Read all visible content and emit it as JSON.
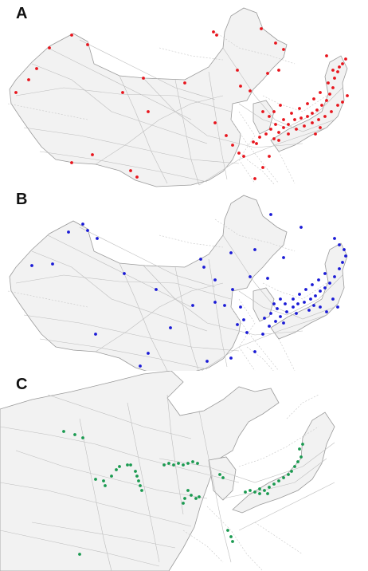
{
  "panels": [
    {
      "label": "A",
      "color": "#e8141c"
    },
    {
      "label": "B",
      "color": "#1a1ad6"
    },
    {
      "label": "C",
      "color": "#1a9a50"
    }
  ]
}
